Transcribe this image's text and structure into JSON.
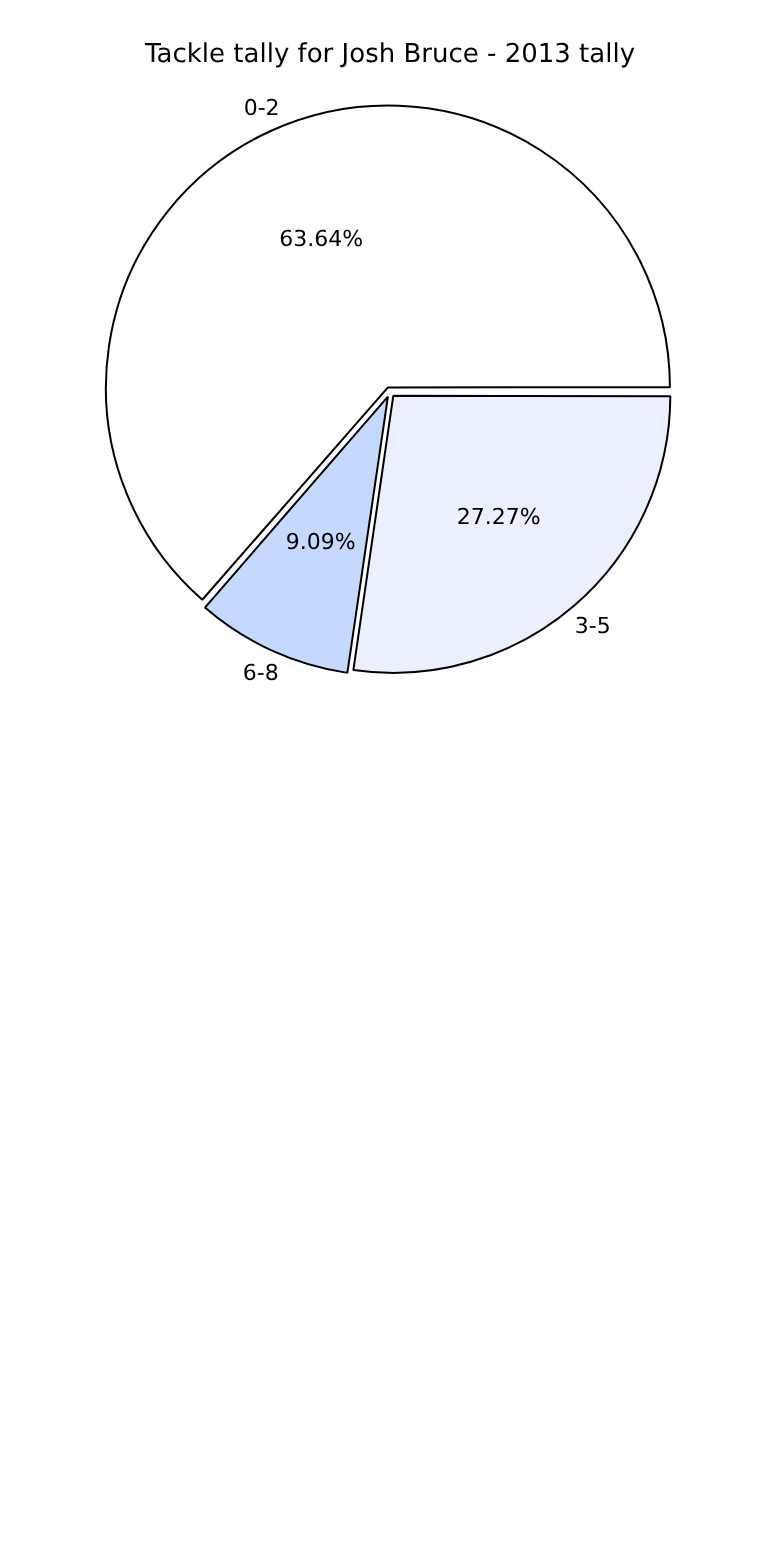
{
  "chart_data": {
    "type": "pie",
    "title": "Tackle tally for Josh Bruce - 2013 tally",
    "categories": [
      "0-2",
      "3-5",
      "6-8"
    ],
    "values": [
      63.64,
      27.27,
      9.09
    ],
    "colors": [
      "#ffffff",
      "#eaf0fe",
      "#c5d8fe"
    ],
    "value_labels": [
      "63.64%",
      "27.27%",
      "9.09%"
    ],
    "legend": false
  }
}
